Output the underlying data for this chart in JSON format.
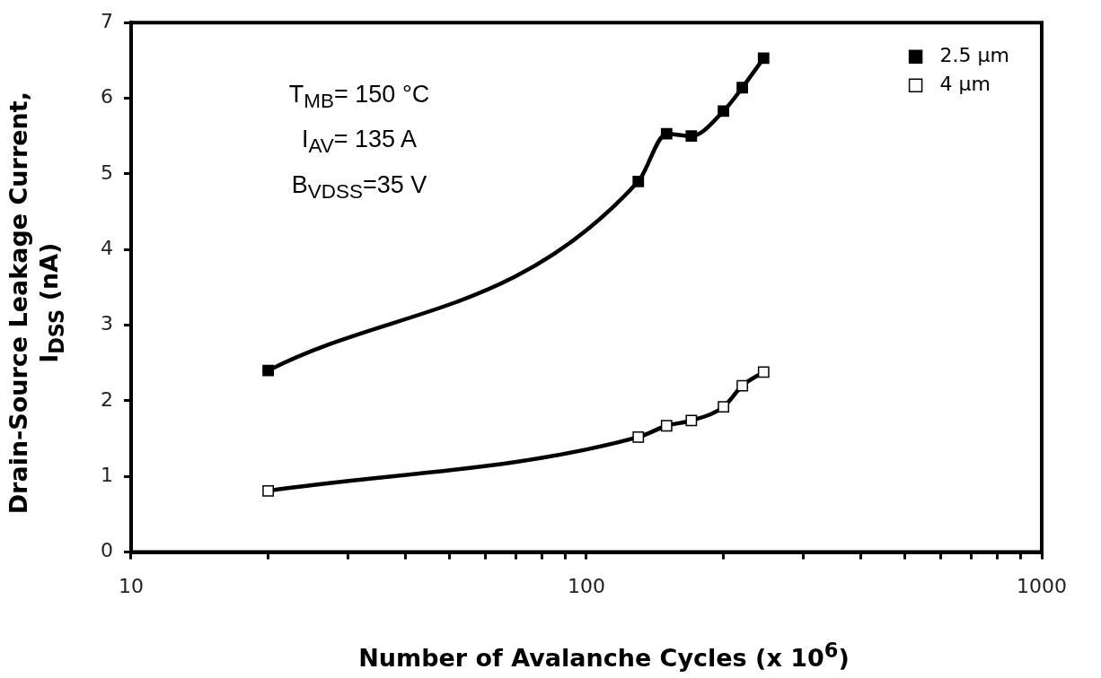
{
  "chart_data": {
    "type": "line",
    "xlabel": "Number of Avalanche Cycles (x 10$^{6}$)",
    "ylabel": "Drain-Source Leakage Current, I$_{DSS}$ (nA)",
    "annotations": [
      "T$_{MB}$= 150 °C",
      "I$_{AV}$= 135 A",
      "B$_{VDSS}$=35 V"
    ],
    "x": [
      20,
      130,
      150,
      170,
      200,
      220,
      245
    ],
    "series": [
      {
        "name": "2.5 µm",
        "color": "#000000",
        "values": [
          2.4,
          4.9,
          5.53,
          5.5,
          5.83,
          6.14,
          6.53
        ]
      },
      {
        "name": "4 µm",
        "color": "#000000",
        "colors": [
          "#ffffff",
          "#ffffff",
          "#ffffff",
          "#ffffff",
          "#ffffff",
          "#ffffff",
          "#ffffff"
        ],
        "values": [
          0.81,
          1.52,
          1.67,
          1.74,
          1.92,
          2.2,
          2.38
        ]
      }
    ],
    "log": "x",
    "xlim": [
      10,
      1000
    ],
    "xticks": [
      10,
      {
        "value": 20,
        "label": null
      },
      {
        "value": 30,
        "label": null
      },
      {
        "value": 40,
        "label": null
      },
      {
        "value": 50,
        "label": null
      },
      {
        "value": 60,
        "label": null
      },
      {
        "value": 70,
        "label": null
      },
      {
        "value": 80,
        "label": null
      },
      {
        "value": 90,
        "label": null
      },
      100,
      {
        "value": 200,
        "label": null
      },
      {
        "value": 300,
        "label": null
      },
      {
        "value": 400,
        "label": null
      },
      {
        "value": 500,
        "label": null
      },
      {
        "value": 600,
        "label": null
      },
      {
        "value": 700,
        "label": null
      },
      {
        "value": 800,
        "label": null
      },
      {
        "value": 900,
        "label": null
      },
      1000
    ],
    "ylim": [
      0,
      7
    ],
    "yticks": [
      0,
      1,
      2,
      3,
      4,
      5,
      6,
      7
    ],
    "grid": false,
    "legend": "top right",
    "marker": "square",
    "line_style": "solid"
  }
}
